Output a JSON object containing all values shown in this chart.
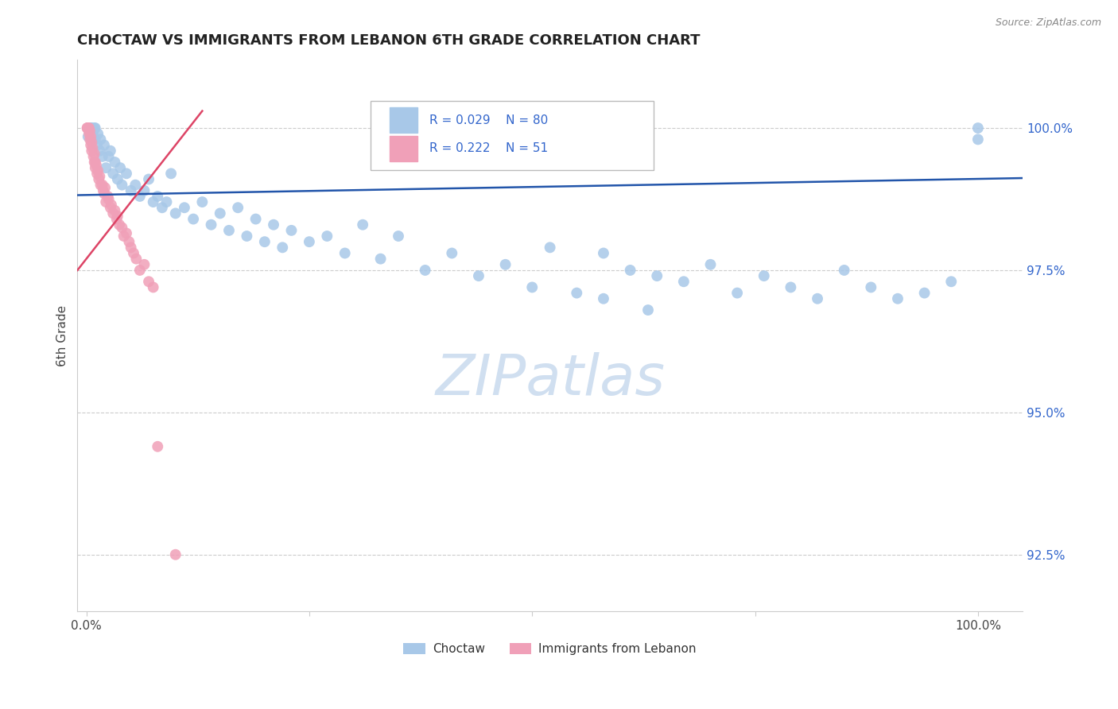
{
  "title": "CHOCTAW VS IMMIGRANTS FROM LEBANON 6TH GRADE CORRELATION CHART",
  "source": "Source: ZipAtlas.com",
  "ylabel": "6th Grade",
  "ylim": [
    91.5,
    101.2
  ],
  "xlim": [
    -0.01,
    1.05
  ],
  "yticks": [
    92.5,
    95.0,
    97.5,
    100.0
  ],
  "ytick_labels": [
    "92.5%",
    "95.0%",
    "97.5%",
    "100.0%"
  ],
  "blue_R": 0.029,
  "blue_N": 80,
  "pink_R": 0.222,
  "pink_N": 51,
  "blue_color": "#a8c8e8",
  "pink_color": "#f0a0b8",
  "blue_line_color": "#2255aa",
  "pink_line_color": "#dd4466",
  "legend_color": "#3366cc",
  "marker_size": 100,
  "blue_scatter_x": [
    0.002,
    0.003,
    0.004,
    0.005,
    0.006,
    0.007,
    0.008,
    0.009,
    0.01,
    0.01,
    0.012,
    0.013,
    0.015,
    0.016,
    0.018,
    0.02,
    0.022,
    0.025,
    0.027,
    0.03,
    0.032,
    0.035,
    0.038,
    0.04,
    0.045,
    0.05,
    0.055,
    0.06,
    0.065,
    0.07,
    0.075,
    0.08,
    0.085,
    0.09,
    0.095,
    0.1,
    0.11,
    0.12,
    0.13,
    0.14,
    0.15,
    0.16,
    0.17,
    0.18,
    0.19,
    0.2,
    0.21,
    0.22,
    0.23,
    0.25,
    0.27,
    0.29,
    0.31,
    0.33,
    0.35,
    0.38,
    0.41,
    0.44,
    0.47,
    0.5,
    0.52,
    0.55,
    0.58,
    0.61,
    0.64,
    0.67,
    0.7,
    0.73,
    0.76,
    0.79,
    0.82,
    0.85,
    0.88,
    0.91,
    0.94,
    0.97,
    1.0,
    1.0,
    0.58,
    0.63
  ],
  "blue_scatter_y": [
    99.85,
    100.0,
    100.0,
    100.0,
    100.0,
    99.9,
    99.95,
    100.0,
    100.0,
    99.8,
    99.7,
    99.9,
    99.6,
    99.8,
    99.5,
    99.7,
    99.3,
    99.5,
    99.6,
    99.2,
    99.4,
    99.1,
    99.3,
    99.0,
    99.2,
    98.9,
    99.0,
    98.8,
    98.9,
    99.1,
    98.7,
    98.8,
    98.6,
    98.7,
    99.2,
    98.5,
    98.6,
    98.4,
    98.7,
    98.3,
    98.5,
    98.2,
    98.6,
    98.1,
    98.4,
    98.0,
    98.3,
    97.9,
    98.2,
    98.0,
    98.1,
    97.8,
    98.3,
    97.7,
    98.1,
    97.5,
    97.8,
    97.4,
    97.6,
    97.2,
    97.9,
    97.1,
    97.8,
    97.5,
    97.4,
    97.3,
    97.6,
    97.1,
    97.4,
    97.2,
    97.0,
    97.5,
    97.2,
    97.0,
    97.1,
    97.3,
    100.0,
    99.8,
    97.0,
    96.8
  ],
  "pink_scatter_x": [
    0.001,
    0.001,
    0.002,
    0.002,
    0.003,
    0.003,
    0.004,
    0.004,
    0.005,
    0.005,
    0.006,
    0.006,
    0.007,
    0.008,
    0.009,
    0.009,
    0.01,
    0.01,
    0.011,
    0.012,
    0.013,
    0.014,
    0.015,
    0.016,
    0.018,
    0.019,
    0.02,
    0.021,
    0.022,
    0.024,
    0.025,
    0.027,
    0.028,
    0.03,
    0.032,
    0.034,
    0.035,
    0.037,
    0.04,
    0.042,
    0.045,
    0.048,
    0.05,
    0.053,
    0.056,
    0.06,
    0.065,
    0.07,
    0.075,
    0.08,
    0.1
  ],
  "pink_scatter_y": [
    100.0,
    100.0,
    100.0,
    100.0,
    100.0,
    99.9,
    99.95,
    99.8,
    99.85,
    99.7,
    99.75,
    99.6,
    99.65,
    99.5,
    99.55,
    99.4,
    99.4,
    99.3,
    99.35,
    99.2,
    99.25,
    99.1,
    99.15,
    99.0,
    99.0,
    98.9,
    98.85,
    98.95,
    98.7,
    98.8,
    98.75,
    98.6,
    98.65,
    98.5,
    98.55,
    98.4,
    98.45,
    98.3,
    98.25,
    98.1,
    98.15,
    98.0,
    97.9,
    97.8,
    97.7,
    97.5,
    97.6,
    97.3,
    97.2,
    94.4,
    92.5
  ],
  "watermark": "ZIPatlas",
  "watermark_color": "#d0dff0"
}
